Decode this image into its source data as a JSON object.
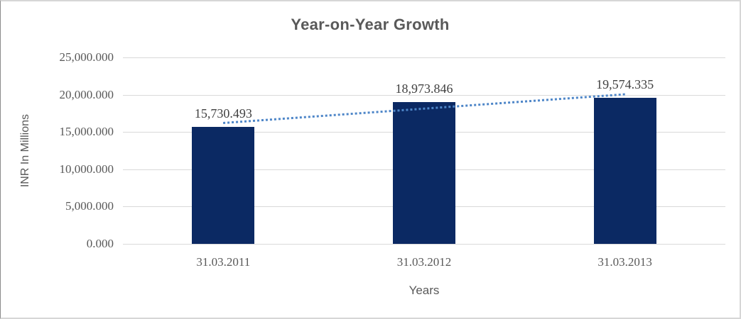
{
  "chart_data": {
    "type": "bar",
    "title": "Year-on-Year Growth",
    "xlabel": "Years",
    "ylabel": "INR In Millions",
    "categories": [
      "31.03.2011",
      "31.03.2012",
      "31.03.2013"
    ],
    "values": [
      15730.493,
      18973.846,
      19574.335
    ],
    "data_labels": [
      "15,730.493",
      "18,973.846",
      "19,574.335"
    ],
    "ylim": [
      0,
      25000
    ],
    "yticks": [
      {
        "value": 0,
        "label": "0.000"
      },
      {
        "value": 5000,
        "label": "5,000.000"
      },
      {
        "value": 10000,
        "label": "10,000.000"
      },
      {
        "value": 15000,
        "label": "15,000.000"
      },
      {
        "value": 20000,
        "label": "20,000.000"
      },
      {
        "value": 25000,
        "label": "25,000.000"
      }
    ],
    "grid": true,
    "legend": "none",
    "trendline": {
      "type": "linear",
      "style": "dotted"
    },
    "colors": {
      "bar": "#0b2963",
      "trend": "#4e86c8",
      "gridline": "#d9d9d9",
      "text": "#595959",
      "data_label": "#404040"
    }
  }
}
